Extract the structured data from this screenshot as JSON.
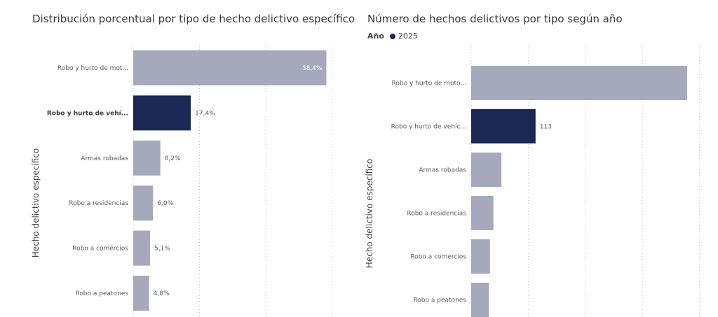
{
  "colors": {
    "bar_default": "#a5a9bb",
    "bar_selected": "#1b2855",
    "label_inside": "#ffffff",
    "label_outside": "#605e5c"
  },
  "chart_data": [
    {
      "type": "bar",
      "orientation": "horizontal",
      "title": "Distribución porcentual por tipo de hecho delictivo específico",
      "ylabel": "Hecho delictivo específico",
      "xlabel": "",
      "unit": "%",
      "categories": [
        "Robo y hurto de mot...",
        "Robo y hurto de vehí...",
        "Armas robadas",
        "Robo a residencias",
        "Robo a comercios",
        "Robo a peatones"
      ],
      "values": [
        58.4,
        17.4,
        8.2,
        6.0,
        5.1,
        4.8
      ],
      "data_labels": [
        "58,4%",
        "17,4%",
        "8,2%",
        "6,0%",
        "5,1%",
        "4,8%"
      ],
      "selected_index": 1,
      "xlim": [
        0,
        60
      ],
      "grid": "vertical-dotted"
    },
    {
      "type": "bar",
      "orientation": "horizontal",
      "title": "Número de hechos delictivos por tipo según año",
      "ylabel": "Hecho delictivo específico",
      "xlabel": "",
      "legend": {
        "title": "Año",
        "entries": [
          "2025"
        ]
      },
      "categories": [
        "Robo y hurto de moto...",
        "Robo y hurto de vehíc...",
        "Armas robadas",
        "Robo a residencias",
        "Robo a comercios",
        "Robo a peatones"
      ],
      "values": [
        379,
        113,
        53,
        39,
        33,
        31
      ],
      "data_labels": [
        "",
        "113",
        "",
        "",
        "",
        ""
      ],
      "selected_index": 1,
      "xlim": [
        0,
        400
      ],
      "grid": "vertical-dotted"
    }
  ]
}
